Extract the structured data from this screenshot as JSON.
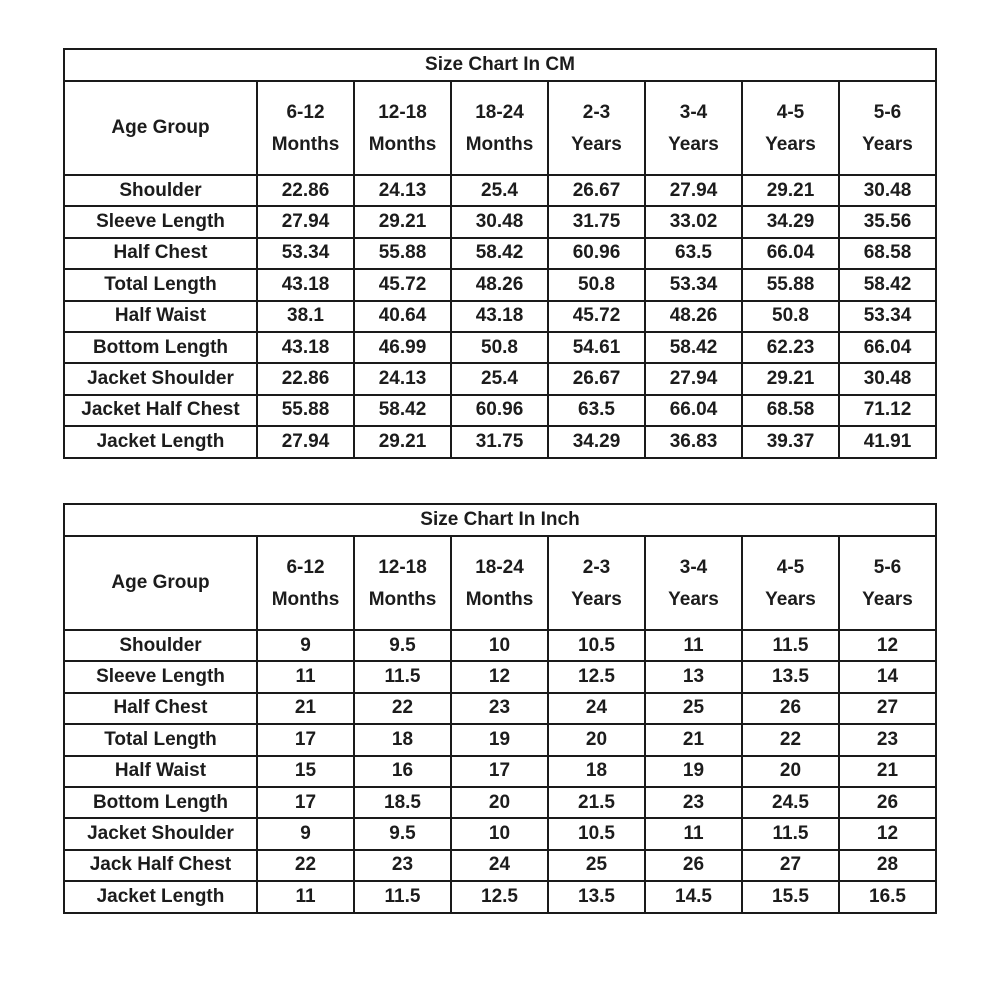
{
  "page": {
    "background_color": "#ffffff",
    "text_color": "#1c1c1c",
    "border_color": "#1a1a1a"
  },
  "chart_data": [
    {
      "type": "table",
      "title": "Size Chart In CM",
      "corner_header": "Age Group",
      "column_headers": [
        [
          "6-12",
          "Months"
        ],
        [
          "12-18",
          "Months"
        ],
        [
          "18-24",
          "Months"
        ],
        [
          "2-3",
          "Years"
        ],
        [
          "3-4",
          "Years"
        ],
        [
          "4-5",
          "Years"
        ],
        [
          "5-6",
          "Years"
        ]
      ],
      "rows": [
        {
          "label": "Shoulder",
          "values": [
            22.86,
            24.13,
            25.4,
            26.67,
            27.94,
            29.21,
            30.48
          ]
        },
        {
          "label": "Sleeve Length",
          "values": [
            27.94,
            29.21,
            30.48,
            31.75,
            33.02,
            34.29,
            35.56
          ]
        },
        {
          "label": "Half Chest",
          "values": [
            53.34,
            55.88,
            58.42,
            60.96,
            63.5,
            66.04,
            68.58
          ]
        },
        {
          "label": "Total Length",
          "values": [
            43.18,
            45.72,
            48.26,
            50.8,
            53.34,
            55.88,
            58.42
          ]
        },
        {
          "label": "Half Waist",
          "values": [
            38.1,
            40.64,
            43.18,
            45.72,
            48.26,
            50.8,
            53.34
          ]
        },
        {
          "label": "Bottom Length",
          "values": [
            43.18,
            46.99,
            50.8,
            54.61,
            58.42,
            62.23,
            66.04
          ]
        },
        {
          "label": "Jacket Shoulder",
          "values": [
            22.86,
            24.13,
            25.4,
            26.67,
            27.94,
            29.21,
            30.48
          ]
        },
        {
          "label": "Jacket Half Chest",
          "values": [
            55.88,
            58.42,
            60.96,
            63.5,
            66.04,
            68.58,
            71.12
          ]
        },
        {
          "label": "Jacket Length",
          "values": [
            27.94,
            29.21,
            31.75,
            34.29,
            36.83,
            39.37,
            41.91
          ]
        }
      ]
    },
    {
      "type": "table",
      "title": "Size Chart In Inch",
      "corner_header": "Age Group",
      "column_headers": [
        [
          "6-12",
          "Months"
        ],
        [
          "12-18",
          "Months"
        ],
        [
          "18-24",
          "Months"
        ],
        [
          "2-3",
          "Years"
        ],
        [
          "3-4",
          "Years"
        ],
        [
          "4-5",
          "Years"
        ],
        [
          "5-6",
          "Years"
        ]
      ],
      "rows": [
        {
          "label": "Shoulder",
          "values": [
            9,
            9.5,
            10,
            10.5,
            11,
            11.5,
            12
          ]
        },
        {
          "label": "Sleeve Length",
          "values": [
            11,
            11.5,
            12,
            12.5,
            13,
            13.5,
            14
          ]
        },
        {
          "label": "Half Chest",
          "values": [
            21,
            22,
            23,
            24,
            25,
            26,
            27
          ]
        },
        {
          "label": "Total Length",
          "values": [
            17,
            18,
            19,
            20,
            21,
            22,
            23
          ]
        },
        {
          "label": "Half Waist",
          "values": [
            15,
            16,
            17,
            18,
            19,
            20,
            21
          ]
        },
        {
          "label": "Bottom Length",
          "values": [
            17,
            18.5,
            20,
            21.5,
            23,
            24.5,
            26
          ]
        },
        {
          "label": "Jacket Shoulder",
          "values": [
            9,
            9.5,
            10,
            10.5,
            11,
            11.5,
            12
          ]
        },
        {
          "label": "Jack Half Chest",
          "values": [
            22,
            23,
            24,
            25,
            26,
            27,
            28
          ]
        },
        {
          "label": "Jacket Length",
          "values": [
            11,
            11.5,
            12.5,
            13.5,
            14.5,
            15.5,
            16.5
          ]
        }
      ]
    }
  ]
}
